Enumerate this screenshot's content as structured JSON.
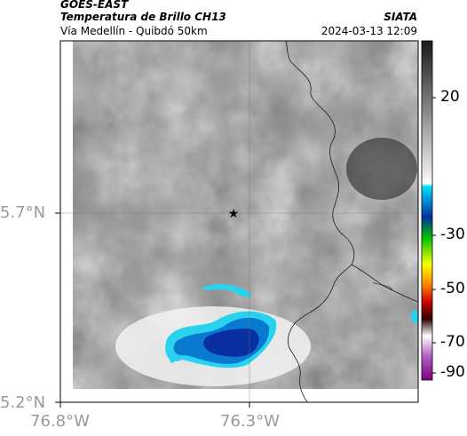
{
  "header": {
    "satellite": "GOES-EAST",
    "product": "Temperatura de Brillo CH13",
    "region": "Vía Medellín - Quibdó 50km",
    "source": "SIATA",
    "datetime": "2024-03-13 12:09"
  },
  "axes": {
    "y_ticks": [
      "5.7°N",
      "5.2°N"
    ],
    "x_ticks": [
      "76.8°W",
      "76.3°W"
    ]
  },
  "colorbar": {
    "ticks": [
      "20",
      "-30",
      "-50",
      "-70",
      "-90"
    ]
  },
  "map": {
    "marker": "star-marker",
    "colors": {
      "cold_core": "#0a2fa0",
      "cold_mid": "#0a7ad0",
      "cold_edge": "#29d3f0"
    }
  }
}
